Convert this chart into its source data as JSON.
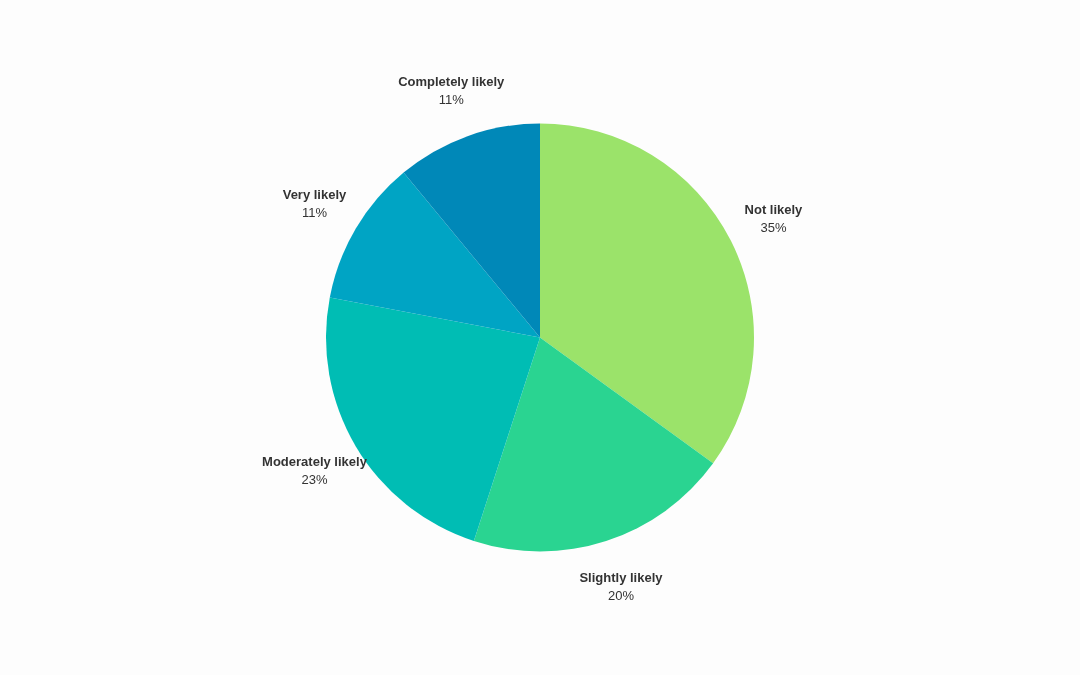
{
  "chart_data": {
    "type": "pie",
    "categories": [
      "Not likely",
      "Slightly likely",
      "Moderately likely",
      "Very likely",
      "Completely likely"
    ],
    "values": [
      35,
      20,
      23,
      11,
      11
    ],
    "value_labels": [
      "35%",
      "20%",
      "23%",
      "11%",
      "11%"
    ],
    "colors": [
      "#9be36a",
      "#2ad491",
      "#00bdb4",
      "#00a4c4",
      "#0088b8"
    ]
  }
}
